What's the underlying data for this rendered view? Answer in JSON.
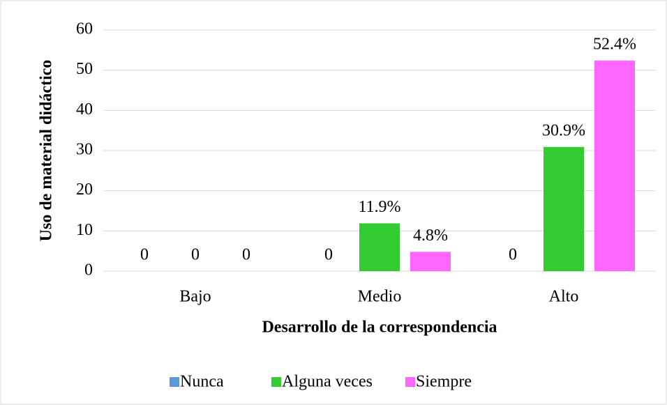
{
  "chart_data": {
    "type": "bar",
    "xlabel": "Desarrollo de la correspondencia",
    "ylabel": "Uso de material didáctico",
    "categories": [
      "Bajo",
      "Medio",
      "Alto"
    ],
    "series": [
      {
        "name": "Nunca",
        "color": "#5b9bd5",
        "values": [
          0,
          0,
          0
        ],
        "value_labels": [
          "0",
          "0",
          "0"
        ]
      },
      {
        "name": "Alguna veces",
        "color": "#33cc33",
        "values": [
          0,
          11.9,
          30.9
        ],
        "value_labels": [
          "0",
          "11.9%",
          "30.9%"
        ]
      },
      {
        "name": "Siempre",
        "color": "#ff66ff",
        "values": [
          0,
          4.8,
          52.4
        ],
        "value_labels": [
          "0",
          "4.8%",
          "52.4%"
        ]
      }
    ],
    "ylim": [
      0,
      60
    ],
    "yticks": [
      0,
      10,
      20,
      30,
      40,
      50,
      60
    ],
    "grid": true,
    "legend": "bottom"
  }
}
